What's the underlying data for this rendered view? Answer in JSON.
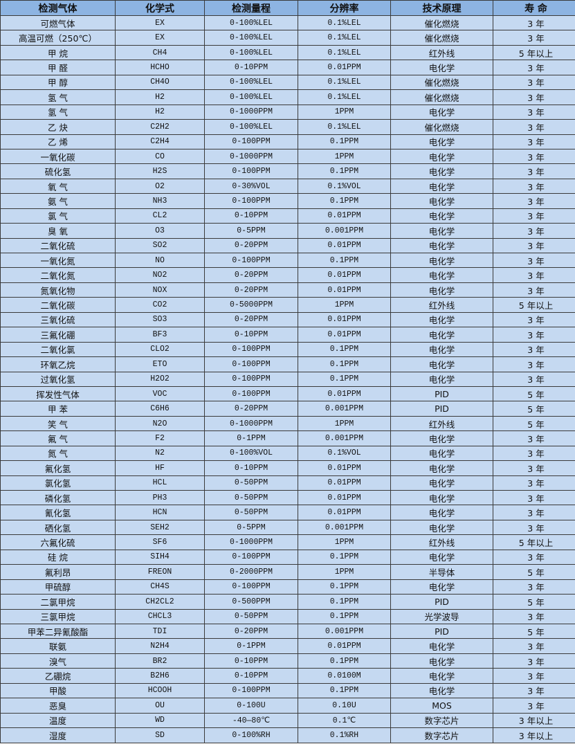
{
  "colors": {
    "header_bg": "#8db4e2",
    "row_bg": "#c5d9f1",
    "border": "#3a3a3a"
  },
  "headers": [
    "检测气体",
    "化学式",
    "检测量程",
    "分辨率",
    "技术原理",
    "寿 命"
  ],
  "rows": [
    [
      "可燃气体",
      "EX",
      "0-100%LEL",
      "0.1%LEL",
      "催化燃烧",
      "3 年"
    ],
    [
      "高温可燃（250℃）",
      "EX",
      "0-100%LEL",
      "0.1%LEL",
      "催化燃烧",
      "3 年"
    ],
    [
      "甲 烷",
      "CH4",
      "0-100%LEL",
      "0.1%LEL",
      "红外线",
      "5 年以上"
    ],
    [
      "甲 醛",
      "HCHO",
      "0-10PPM",
      "0.01PPM",
      "电化学",
      "3 年"
    ],
    [
      "甲 醇",
      "CH4O",
      "0-100%LEL",
      "0.1%LEL",
      "催化燃烧",
      "3 年"
    ],
    [
      "氢 气",
      "H2",
      "0-100%LEL",
      "0.1%LEL",
      "催化燃烧",
      "3 年"
    ],
    [
      "氢 气",
      "H2",
      "0-1000PPM",
      "1PPM",
      "电化学",
      "3 年"
    ],
    [
      "乙 炔",
      "C2H2",
      "0-100%LEL",
      "0.1%LEL",
      "催化燃烧",
      "3 年"
    ],
    [
      "乙 烯",
      "C2H4",
      "0-100PPM",
      "0.1PPM",
      "电化学",
      "3 年"
    ],
    [
      "一氧化碳",
      "CO",
      "0-1000PPM",
      "1PPM",
      "电化学",
      "3 年"
    ],
    [
      "硫化氢",
      "H2S",
      "0-100PPM",
      "0.1PPM",
      "电化学",
      "3 年"
    ],
    [
      "氧 气",
      "O2",
      "0-30%VOL",
      "0.1%VOL",
      "电化学",
      "3 年"
    ],
    [
      "氨 气",
      "NH3",
      "0-100PPM",
      "0.1PPM",
      "电化学",
      "3 年"
    ],
    [
      "氯 气",
      "CL2",
      "0-10PPM",
      "0.01PPM",
      "电化学",
      "3 年"
    ],
    [
      "臭 氧",
      "O3",
      "0-5PPM",
      "0.001PPM",
      "电化学",
      "3 年"
    ],
    [
      "二氧化硫",
      "SO2",
      "0-20PPM",
      "0.01PPM",
      "电化学",
      "3 年"
    ],
    [
      "一氧化氮",
      "NO",
      "0-100PPM",
      "0.1PPM",
      "电化学",
      "3 年"
    ],
    [
      "二氧化氮",
      "NO2",
      "0-20PPM",
      "0.01PPM",
      "电化学",
      "3 年"
    ],
    [
      "氮氧化物",
      "NOX",
      "0-20PPM",
      "0.01PPM",
      "电化学",
      "3 年"
    ],
    [
      "二氧化碳",
      "CO2",
      "0-5000PPM",
      "1PPM",
      "红外线",
      "5 年以上"
    ],
    [
      "三氧化硫",
      "SO3",
      "0-20PPM",
      "0.01PPM",
      "电化学",
      "3 年"
    ],
    [
      "三氟化硼",
      "BF3",
      "0-10PPM",
      "0.01PPM",
      "电化学",
      "3 年"
    ],
    [
      "二氧化氯",
      "CLO2",
      "0-100PPM",
      "0.1PPM",
      "电化学",
      "3 年"
    ],
    [
      "环氧乙烷",
      "ETO",
      "0-100PPM",
      "0.1PPM",
      "电化学",
      "3 年"
    ],
    [
      "过氧化氢",
      "H2O2",
      "0-100PPM",
      "0.1PPM",
      "电化学",
      "3 年"
    ],
    [
      "挥发性气体",
      "VOC",
      "0-100PPM",
      "0.01PPM",
      "PID",
      "5 年"
    ],
    [
      "甲 苯",
      "C6H6",
      "0-20PPM",
      "0.001PPM",
      "PID",
      "5 年"
    ],
    [
      "笑 气",
      "N2O",
      "0-1000PPM",
      "1PPM",
      "红外线",
      "5 年"
    ],
    [
      "氟 气",
      "F2",
      "0-1PPM",
      "0.001PPM",
      "电化学",
      "3 年"
    ],
    [
      "氮 气",
      "N2",
      "0-100%VOL",
      "0.1%VOL",
      "电化学",
      "3 年"
    ],
    [
      "氟化氢",
      "HF",
      "0-10PPM",
      "0.01PPM",
      "电化学",
      "3 年"
    ],
    [
      "氯化氢",
      "HCL",
      "0-50PPM",
      "0.01PPM",
      "电化学",
      "3 年"
    ],
    [
      "磷化氢",
      "PH3",
      "0-50PPM",
      "0.01PPM",
      "电化学",
      "3 年"
    ],
    [
      "氰化氢",
      "HCN",
      "0-50PPM",
      "0.01PPM",
      "电化学",
      "3 年"
    ],
    [
      "硒化氢",
      "SEH2",
      "0-5PPM",
      "0.001PPM",
      "电化学",
      "3 年"
    ],
    [
      "六氟化硫",
      "SF6",
      "0-1000PPM",
      "1PPM",
      "红外线",
      "5 年以上"
    ],
    [
      "硅 烷",
      "SIH4",
      "0-100PPM",
      "0.1PPM",
      "电化学",
      "3 年"
    ],
    [
      "氟利昂",
      "FREON",
      "0-2000PPM",
      "1PPM",
      "半导体",
      "5 年"
    ],
    [
      "甲硫醇",
      "CH4S",
      "0-100PPM",
      "0.1PPM",
      "电化学",
      "3 年"
    ],
    [
      "二氯甲烷",
      "CH2CL2",
      "0-500PPM",
      "0.1PPM",
      "PID",
      "5 年"
    ],
    [
      "三氯甲烷",
      "CHCL3",
      "0-50PPM",
      "0.1PPM",
      "光学波导",
      "3 年"
    ],
    [
      "甲苯二异氰酸酯",
      "TDI",
      "0-20PPM",
      "0.001PPM",
      "PID",
      "5 年"
    ],
    [
      "联氨",
      "N2H4",
      "0-1PPM",
      "0.01PPM",
      "电化学",
      "3 年"
    ],
    [
      "溴气",
      "BR2",
      "0-10PPM",
      "0.1PPM",
      "电化学",
      "3 年"
    ],
    [
      "乙硼烷",
      "B2H6",
      "0-10PPM",
      "0.0100M",
      "电化学",
      "3 年"
    ],
    [
      "甲酸",
      "HCOOH",
      "0-100PPM",
      "0.1PPM",
      "电化学",
      "3 年"
    ],
    [
      "恶臭",
      "OU",
      "0-100U",
      "0.10U",
      "MOS",
      "3 年"
    ],
    [
      "温度",
      "WD",
      "-40—80℃",
      "0.1℃",
      "数字芯片",
      "3 年以上"
    ],
    [
      "湿度",
      "SD",
      "0-100%RH",
      "0.1%RH",
      "数字芯片",
      "3 年以上"
    ]
  ]
}
